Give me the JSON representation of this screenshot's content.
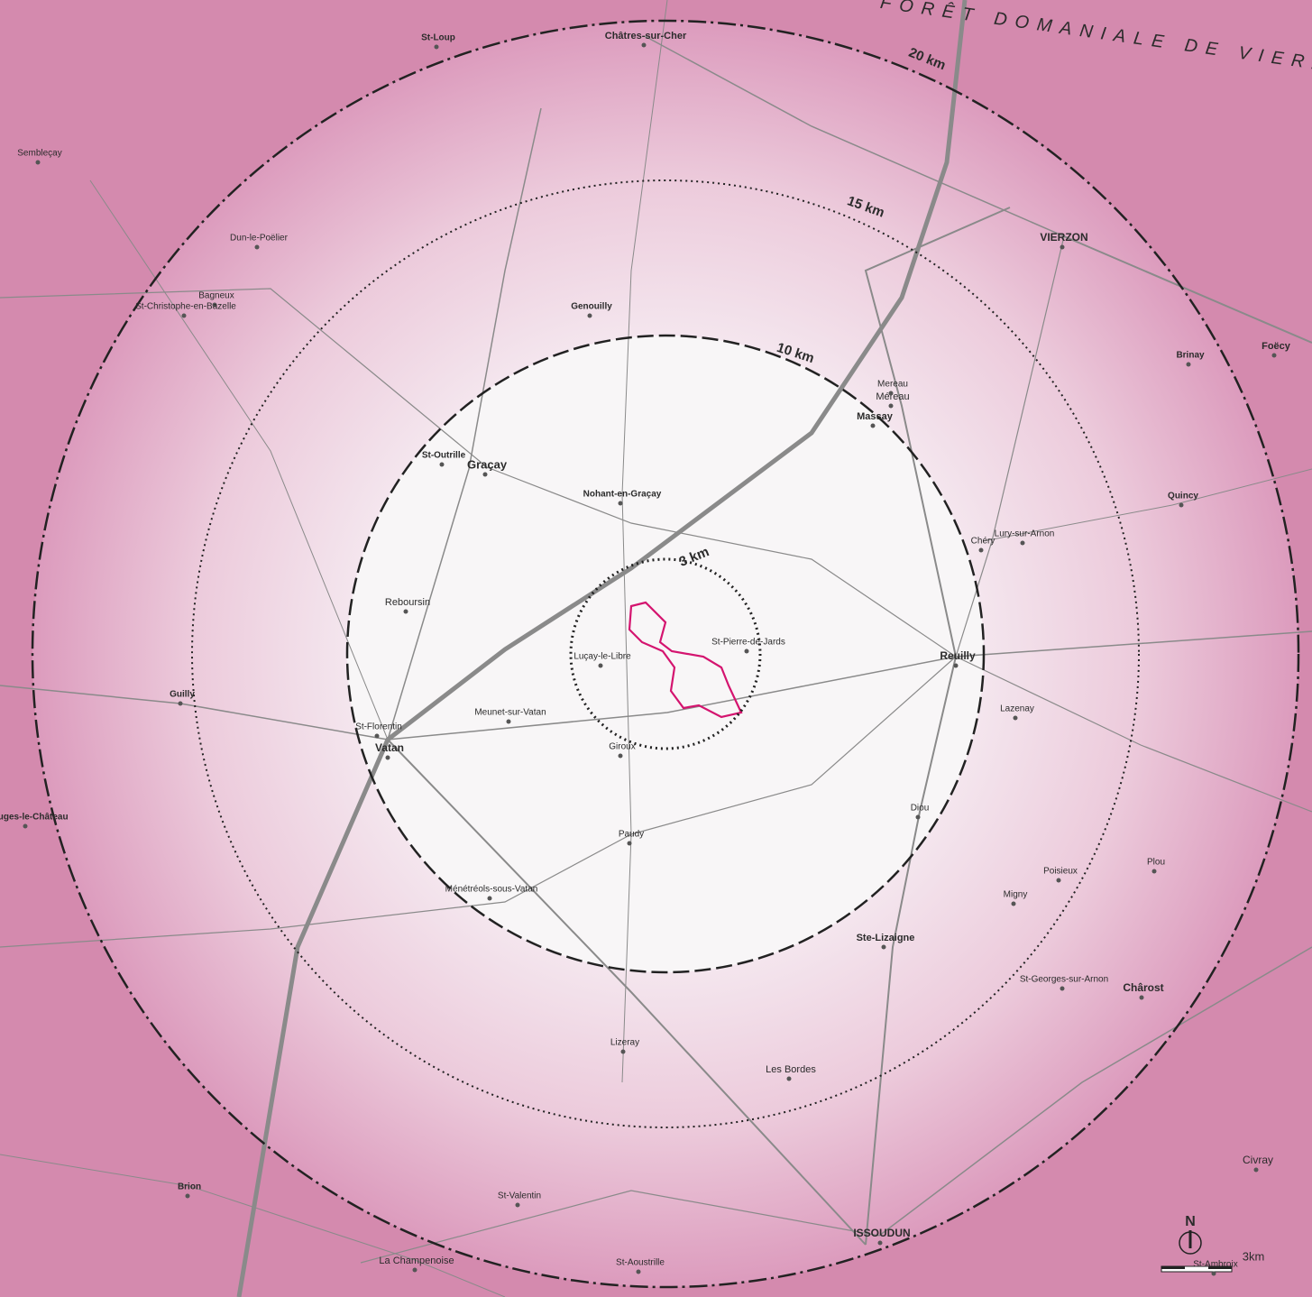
{
  "rings": [
    {
      "label": "3 km"
    },
    {
      "label": "10 km"
    },
    {
      "label": "15 km"
    },
    {
      "label": "20 km"
    }
  ],
  "forest_label": "FORÊT DOMANIALE DE VIERZON",
  "places": [
    "VIERZON",
    "Graçay",
    "St-Outrille",
    "Nohant-en-Graçay",
    "Massay",
    "Reuilly",
    "Vatan",
    "Luçay-le-Libre",
    "St-Pierre-de-Jards",
    "ISSOUDUN",
    "Ste-Lizaigne",
    "Les Bordes",
    "Paudy",
    "Méreau",
    "Foëcy",
    "Chârost",
    "Civray",
    "Brion",
    "La Champenoise",
    "St-Ambroix",
    "Dun-le-Poëlier",
    "Genouilly",
    "Châtres-sur-Cher",
    "St-Loup",
    "Lury-sur-Arnon",
    "Diou",
    "Meunet-sur-Vatan",
    "Giroux",
    "Ménétréols-sous-Vatan",
    "Lizeray",
    "St-Valentin",
    "St-Aoustrille",
    "Reboursin",
    "Bagneux",
    "St-Christophe-en-Bazelle",
    "Sembleçay",
    "Quincy",
    "Brinay",
    "St-Georges-sur-Arnon",
    "Chéry",
    "Migny",
    "Poisieux",
    "Plou",
    "Bouges-le-Château",
    "Guilly",
    "Lazenay",
    "St-Florentin",
    "Mereau"
  ],
  "scale_bar": {
    "label": "3km"
  },
  "north_arrow": {
    "label": "N"
  }
}
